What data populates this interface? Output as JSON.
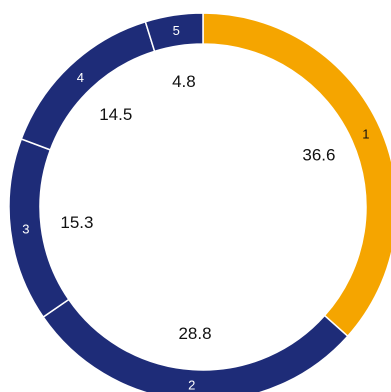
{
  "chart_data": {
    "type": "pie",
    "categories": [
      "1",
      "2",
      "3",
      "4",
      "5"
    ],
    "values": [
      36.6,
      28.8,
      15.3,
      14.5,
      4.8
    ],
    "value_labels": [
      "36.6",
      "28.8",
      "15.3",
      "14.5",
      "4.8"
    ],
    "colors": [
      "#f5a500",
      "#1e2c78",
      "#1e2c78",
      "#1e2c78",
      "#1e2c78"
    ],
    "start": "top",
    "direction": "clockwise",
    "style": "donut",
    "title": "",
    "legend": "none"
  }
}
